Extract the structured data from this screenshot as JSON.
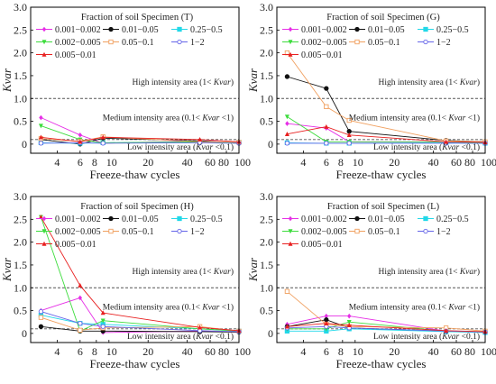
{
  "colors": {
    "0.001-0.002": "#e62ee6",
    "0.01-0.05": "#111111",
    "0.25-0.5": "#22d8e8",
    "0.002-0.005": "#3ddc3d",
    "0.05-0.1": "#f0a060",
    "1-2": "#6666e8",
    "0.005-0.01": "#e82020",
    "ref_line": "#555555"
  },
  "chart_data": [
    {
      "type": "line",
      "panel": "T",
      "legend_title": "Fraction of soil  Specimen (T)",
      "xlabel": "Freeze-thaw cycles",
      "ylabel": "Kvar",
      "x_scale": "log",
      "xlim": [
        2.5,
        100
      ],
      "ylim": [
        -0.2,
        3
      ],
      "xticks": [
        4,
        6,
        8,
        10,
        20,
        40,
        60,
        80,
        100
      ],
      "xtick_labels": [
        "4",
        "6",
        "8",
        "10",
        "20",
        "40",
        "60",
        "80",
        "100"
      ],
      "yticks": [
        0,
        0.5,
        1,
        1.5,
        2,
        2.5,
        3
      ],
      "ytick_labels": [
        "0",
        "0.5",
        "1.0",
        "1.5",
        "2.0",
        "2.5",
        "3.0"
      ],
      "reference_lines": [
        1,
        0.1
      ],
      "annotations": {
        "high": "High intensity area (1< Kvar)",
        "medium": "Medium intensity area (0.1< Kvar <1)",
        "low": "Low intensity area  (Kvar <0.1)"
      },
      "x": [
        3,
        6,
        9,
        50,
        100
      ],
      "series": [
        {
          "name": "0.001−0.002",
          "key": "0.001-0.002",
          "values": [
            0.58,
            0.2,
            0.02,
            0.07,
            0.03
          ]
        },
        {
          "name": "0.01−0.05",
          "key": "0.01-0.05",
          "values": [
            0.1,
            0.0,
            0.13,
            0.07,
            0.02
          ]
        },
        {
          "name": "0.25−0.5",
          "key": "0.25-0.5",
          "values": [
            0.03,
            0.02,
            0.03,
            0.05,
            0.04
          ]
        },
        {
          "name": "0.002−0.005",
          "key": "0.002-0.005",
          "values": [
            0.4,
            0.1,
            0.03,
            0.05,
            0.02
          ]
        },
        {
          "name": "0.05−0.1",
          "key": "0.05-0.1",
          "values": [
            0.12,
            0.06,
            0.16,
            0.05,
            0.04
          ]
        },
        {
          "name": "1−2",
          "key": "1-2",
          "values": [
            0.02,
            0.03,
            0.02,
            0.03,
            0.02
          ]
        },
        {
          "name": "0.005−0.01",
          "key": "0.005-0.01",
          "values": [
            0.15,
            0.05,
            0.15,
            0.1,
            0.05
          ]
        }
      ]
    },
    {
      "type": "line",
      "panel": "G",
      "legend_title": "Fraction of soil  Specimen (G)",
      "xlabel": "Freeze-thaw cycles",
      "ylabel": "Kvar",
      "x_scale": "log",
      "xlim": [
        2.5,
        100
      ],
      "ylim": [
        -0.2,
        3
      ],
      "xticks": [
        4,
        6,
        8,
        10,
        20,
        40,
        60,
        80,
        100
      ],
      "xtick_labels": [
        "4",
        "6",
        "8",
        "10",
        "20",
        "40",
        "60",
        "80",
        "100"
      ],
      "yticks": [
        0,
        0.5,
        1,
        1.5,
        2,
        2.5,
        3
      ],
      "ytick_labels": [
        "0",
        "0.5",
        "1.0",
        "1.5",
        "2.0",
        "2.5",
        "3.0"
      ],
      "reference_lines": [
        1,
        0.1
      ],
      "annotations": {
        "high": "High intensity area (1< Kvar)",
        "medium": "Medium intensity area (0.1< Kvar <1)",
        "low": "Low intensity area  (Kvar <0.1)"
      },
      "x": [
        3,
        6,
        9,
        50,
        100
      ],
      "series": [
        {
          "name": "0.001−0.002",
          "key": "0.001-0.002",
          "values": [
            0.45,
            0.35,
            0.05,
            0.05,
            0.03
          ]
        },
        {
          "name": "0.01−0.05",
          "key": "0.01-0.05",
          "values": [
            1.48,
            1.22,
            0.28,
            0.08,
            0.05
          ]
        },
        {
          "name": "0.25−0.5",
          "key": "0.25-0.5",
          "values": [
            0.03,
            0.02,
            0.02,
            0.03,
            0.02
          ]
        },
        {
          "name": "0.002−0.005",
          "key": "0.002-0.005",
          "values": [
            0.6,
            0.05,
            0.05,
            0.05,
            0.03
          ]
        },
        {
          "name": "0.05−0.1",
          "key": "0.05-0.1",
          "values": [
            2.0,
            0.82,
            0.52,
            0.07,
            0.05
          ]
        },
        {
          "name": "1−2",
          "key": "1-2",
          "values": [
            0.02,
            0.02,
            0.02,
            0.02,
            0.02
          ]
        },
        {
          "name": "0.005−0.01",
          "key": "0.005-0.01",
          "values": [
            0.22,
            0.38,
            0.2,
            0.05,
            0.04
          ]
        }
      ]
    },
    {
      "type": "line",
      "panel": "H",
      "legend_title": "Fraction of soil  Specimen (H)",
      "xlabel": "Freeze-thaw cycles",
      "ylabel": "Kvar",
      "x_scale": "log",
      "xlim": [
        2.5,
        100
      ],
      "ylim": [
        -0.2,
        3
      ],
      "xticks": [
        4,
        6,
        8,
        10,
        20,
        40,
        60,
        80,
        100
      ],
      "xtick_labels": [
        "4",
        "6",
        "8",
        "10",
        "20",
        "40",
        "60",
        "80",
        "100"
      ],
      "yticks": [
        0,
        0.5,
        1,
        1.5,
        2,
        2.5,
        3
      ],
      "ytick_labels": [
        "0",
        "0.5",
        "1.0",
        "1.5",
        "2.0",
        "2.5",
        "3.0"
      ],
      "reference_lines": [
        1,
        0.1
      ],
      "annotations": {
        "high": "High intensity area (1< Kvar)",
        "medium": "Medium intensity area (0.1< Kvar <1)",
        "low": "Low intensity area  (Kvar <0.1)"
      },
      "x": [
        3,
        6,
        9,
        50,
        100
      ],
      "series": [
        {
          "name": "0.001−0.002",
          "key": "0.001-0.002",
          "values": [
            0.5,
            0.78,
            0.02,
            0.05,
            0.03
          ]
        },
        {
          "name": "0.01−0.05",
          "key": "0.01-0.05",
          "values": [
            0.15,
            0.05,
            0.05,
            0.04,
            0.03
          ]
        },
        {
          "name": "0.25−0.5",
          "key": "0.25-0.5",
          "values": [
            0.4,
            0.22,
            0.2,
            0.1,
            0.05
          ]
        },
        {
          "name": "0.002−0.005",
          "key": "0.002-0.005",
          "values": [
            2.55,
            0.05,
            0.28,
            0.1,
            0.05
          ]
        },
        {
          "name": "0.05−0.1",
          "key": "0.05-0.1",
          "values": [
            0.35,
            0.07,
            0.12,
            0.15,
            0.05
          ]
        },
        {
          "name": "1−2",
          "key": "1-2",
          "values": [
            0.48,
            0.22,
            0.15,
            0.06,
            0.04
          ]
        },
        {
          "name": "0.005−0.01",
          "key": "0.005-0.01",
          "values": [
            2.55,
            1.05,
            0.45,
            0.13,
            0.06
          ]
        }
      ]
    },
    {
      "type": "line",
      "panel": "L",
      "legend_title": "Fraction of soil  Specimen (L)",
      "xlabel": "Freeze-thaw cycles",
      "ylabel": "Kvar",
      "x_scale": "log",
      "xlim": [
        2.5,
        100
      ],
      "ylim": [
        -0.2,
        3
      ],
      "xticks": [
        4,
        6,
        8,
        10,
        20,
        40,
        60,
        80,
        100
      ],
      "xtick_labels": [
        "4",
        "6",
        "8",
        "10",
        "20",
        "40",
        "60",
        "80",
        "100"
      ],
      "yticks": [
        0,
        0.5,
        1,
        1.5,
        2,
        2.5,
        3
      ],
      "ytick_labels": [
        "0",
        "0.5",
        "1.0",
        "1.5",
        "2.0",
        "2.5",
        "3.0"
      ],
      "reference_lines": [
        1,
        0.1
      ],
      "annotations": {
        "high": "High intensity area (1< Kvar)",
        "medium": "Medium intensity area (0.1< Kvar <1)",
        "low": "Low intensity area  (Kvar <0.1)"
      },
      "x": [
        3,
        6,
        9,
        50,
        100
      ],
      "series": [
        {
          "name": "0.001−0.002",
          "key": "0.001-0.002",
          "values": [
            0.2,
            0.38,
            0.38,
            0.05,
            0.03
          ]
        },
        {
          "name": "0.01−0.05",
          "key": "0.01-0.05",
          "values": [
            0.15,
            0.3,
            0.12,
            0.05,
            0.03
          ]
        },
        {
          "name": "0.25−0.5",
          "key": "0.25-0.5",
          "values": [
            0.05,
            0.05,
            0.1,
            0.04,
            0.02
          ]
        },
        {
          "name": "0.002−0.005",
          "key": "0.002-0.005",
          "values": [
            0.1,
            0.1,
            0.25,
            0.05,
            0.03
          ]
        },
        {
          "name": "0.05−0.1",
          "key": "0.05-0.1",
          "values": [
            0.92,
            0.2,
            0.15,
            0.12,
            0.05
          ]
        },
        {
          "name": "1−2",
          "key": "1-2",
          "values": [
            0.12,
            0.15,
            0.12,
            0.05,
            0.03
          ]
        },
        {
          "name": "0.005−0.01",
          "key": "0.005-0.01",
          "values": [
            0.15,
            0.22,
            0.18,
            0.06,
            0.04
          ]
        }
      ]
    }
  ]
}
